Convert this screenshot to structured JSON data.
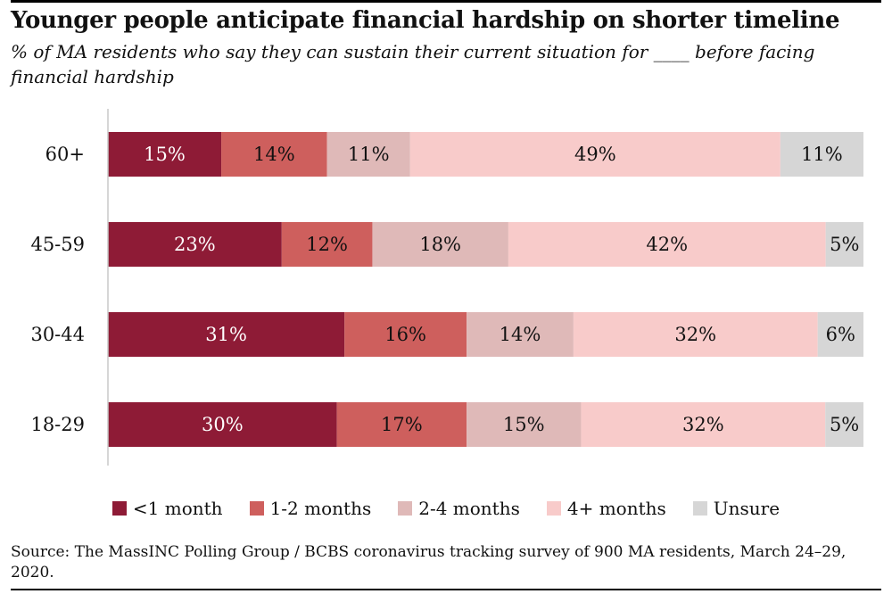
{
  "header": {
    "title": "Younger people anticipate financial hardship on shorter timeline",
    "subtitle": "% of MA residents who say they can sustain their current situation for ____ before facing financial hardship"
  },
  "chart_data": {
    "type": "bar",
    "orientation": "horizontal",
    "stacked": true,
    "value_format": "percent",
    "categories": [
      "60+",
      "45-59",
      "30-44",
      "18-29"
    ],
    "series": [
      {
        "name": "<1 month",
        "color": "#8E1B36",
        "label_color": "#ffffff",
        "values": [
          15,
          23,
          31,
          30
        ]
      },
      {
        "name": "1-2 months",
        "color": "#CE5F5D",
        "label_color": "#111111",
        "values": [
          14,
          12,
          16,
          17
        ]
      },
      {
        "name": "2-4 months",
        "color": "#DFB9B8",
        "label_color": "#111111",
        "values": [
          11,
          18,
          14,
          15
        ]
      },
      {
        "name": "4+ months",
        "color": "#F8CBCA",
        "label_color": "#111111",
        "values": [
          49,
          42,
          32,
          32
        ]
      },
      {
        "name": "Unsure",
        "color": "#D6D6D6",
        "label_color": "#111111",
        "values": [
          11,
          5,
          6,
          5
        ]
      }
    ],
    "legend_position": "bottom"
  },
  "footer": {
    "source": "Source: The MassINC Polling Group / BCBS coronavirus tracking survey of 900 MA residents, March 24–29, 2020."
  }
}
